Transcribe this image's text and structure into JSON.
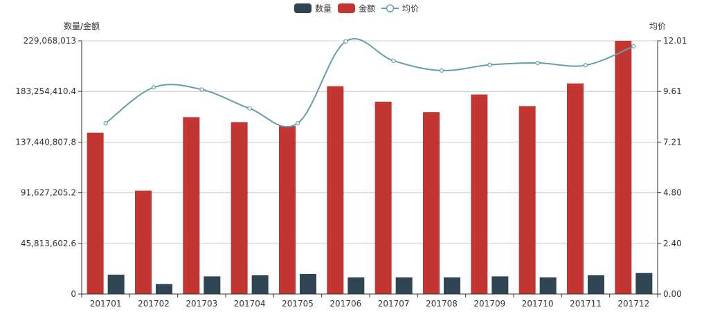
{
  "chart_data": {
    "type": "bar",
    "categories": [
      "201701",
      "201702",
      "201703",
      "201704",
      "201705",
      "201706",
      "201707",
      "201708",
      "201709",
      "201710",
      "201711",
      "201712"
    ],
    "series": [
      {
        "name": "数量",
        "type": "bar",
        "axis": "left",
        "color": "#2f4554",
        "values": [
          17500000,
          9000000,
          16000000,
          17000000,
          18200000,
          15000000,
          15000000,
          15000000,
          16000000,
          15000000,
          17000000,
          19000000
        ]
      },
      {
        "name": "金额",
        "type": "bar",
        "axis": "left",
        "color": "#c23531",
        "values": [
          146000000,
          93500000,
          160000000,
          155500000,
          152000000,
          188000000,
          174000000,
          164500000,
          180500000,
          170000000,
          190500000,
          229068013
        ]
      },
      {
        "name": "均价",
        "type": "line",
        "axis": "right",
        "color": "#61a0a8",
        "smooth": true,
        "values": [
          8.1,
          9.8,
          9.7,
          8.8,
          8.1,
          11.98,
          11.06,
          10.6,
          10.87,
          10.96,
          10.85,
          11.75
        ]
      }
    ],
    "ylabel_left": "数量/金额",
    "ylabel_right": "均价",
    "ylim_left": [
      0,
      229068013
    ],
    "yticks_left": [
      "0",
      "45,813,602.6",
      "91,627,205.2",
      "137,440,807.8",
      "183,254,410.4",
      "229,068,013"
    ],
    "ylim_right": [
      0,
      12.01
    ],
    "yticks_right": [
      "0.00",
      "2.40",
      "4.80",
      "7.21",
      "9.61",
      "12.01"
    ],
    "grid": true,
    "legend_position": "top-center"
  }
}
